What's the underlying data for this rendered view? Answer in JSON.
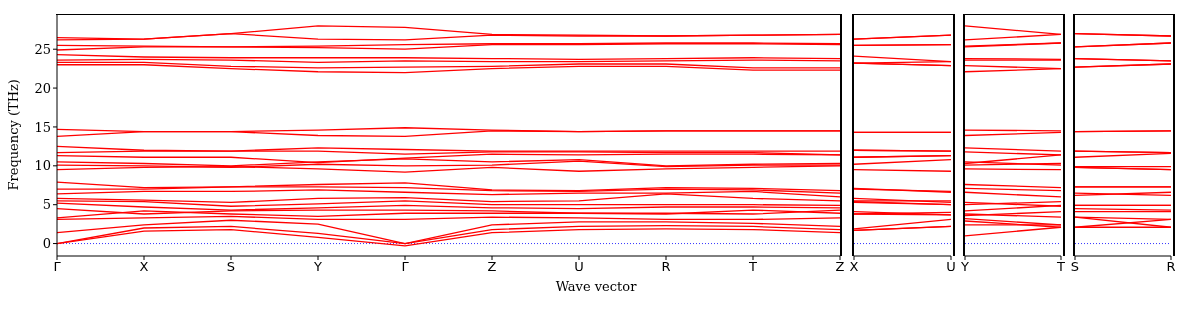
{
  "chart_data": [
    {
      "type": "line",
      "ylabel": "Frequency (THz)",
      "xlabel": "Wave vector",
      "color": "#ff0000",
      "categories": [
        "Γ",
        "X",
        "S",
        "Y",
        "Γ",
        "Z",
        "U",
        "R",
        "T",
        "Z"
      ],
      "ylim": [
        -1.6,
        29.4
      ],
      "yticks": [
        0,
        5,
        10,
        15,
        20,
        25
      ],
      "ref_lines": [
        {
          "axis": "y",
          "value": 0,
          "color": "#0000ff",
          "line_style": "dotted"
        }
      ],
      "series": [
        {
          "values": [
            26.5,
            26.3,
            27.0,
            28.0,
            27.8,
            26.9,
            26.8,
            26.7,
            26.8,
            26.9
          ]
        },
        {
          "values": [
            26.2,
            26.3,
            27.0,
            26.3,
            26.2,
            26.8,
            26.7,
            26.7,
            26.8,
            26.9
          ]
        },
        {
          "values": [
            25.5,
            25.4,
            25.3,
            25.4,
            25.6,
            25.7,
            25.7,
            25.8,
            25.8,
            25.7
          ]
        },
        {
          "values": [
            24.9,
            25.3,
            25.3,
            25.2,
            25.0,
            25.6,
            25.6,
            25.7,
            25.7,
            25.6
          ]
        },
        {
          "values": [
            24.3,
            24.0,
            23.9,
            23.9,
            23.9,
            23.8,
            23.7,
            23.8,
            23.9,
            23.8
          ]
        },
        {
          "values": [
            23.6,
            23.7,
            23.6,
            23.3,
            23.5,
            23.4,
            23.4,
            23.5,
            23.6,
            23.5
          ]
        },
        {
          "values": [
            23.3,
            23.3,
            22.8,
            22.6,
            22.7,
            22.8,
            23.1,
            23.1,
            22.6,
            22.6
          ]
        },
        {
          "values": [
            23.0,
            23.0,
            22.5,
            22.1,
            22.0,
            22.5,
            22.8,
            22.8,
            22.3,
            22.3
          ]
        },
        {
          "values": [
            14.7,
            14.4,
            14.4,
            14.6,
            14.9,
            14.6,
            14.4,
            14.5,
            14.5,
            14.5
          ]
        },
        {
          "values": [
            13.8,
            14.4,
            14.4,
            13.9,
            13.8,
            14.5,
            14.4,
            14.5,
            14.5,
            14.5
          ]
        },
        {
          "values": [
            12.5,
            12.0,
            11.9,
            12.3,
            12.1,
            11.9,
            11.9,
            11.9,
            11.9,
            11.9
          ]
        },
        {
          "values": [
            11.7,
            11.9,
            11.9,
            11.9,
            11.5,
            11.8,
            11.8,
            11.7,
            11.7,
            11.4
          ]
        },
        {
          "values": [
            11.3,
            11.1,
            11.1,
            10.4,
            11.0,
            11.5,
            11.4,
            11.5,
            11.5,
            11.4
          ]
        },
        {
          "values": [
            10.5,
            10.3,
            10.0,
            10.5,
            10.9,
            10.5,
            10.8,
            10.0,
            10.2,
            10.3
          ]
        },
        {
          "values": [
            10.1,
            10.0,
            9.8,
            10.2,
            10.0,
            10.1,
            10.6,
            9.9,
            10.1,
            10.1
          ]
        },
        {
          "values": [
            9.5,
            9.8,
            9.9,
            9.6,
            9.2,
            9.8,
            9.3,
            9.6,
            9.8,
            10.0
          ]
        },
        {
          "values": [
            7.9,
            7.2,
            7.3,
            7.6,
            7.8,
            6.9,
            6.8,
            7.2,
            7.1,
            6.8
          ]
        },
        {
          "values": [
            7.0,
            7.0,
            7.3,
            7.3,
            7.2,
            6.8,
            6.7,
            7.0,
            6.9,
            6.5
          ]
        },
        {
          "values": [
            6.4,
            6.7,
            6.7,
            6.9,
            6.6,
            6.3,
            6.5,
            6.5,
            6.7,
            6.0
          ]
        },
        {
          "values": [
            5.8,
            5.6,
            5.3,
            5.8,
            5.9,
            5.4,
            5.5,
            6.4,
            5.8,
            5.5
          ]
        },
        {
          "values": [
            5.5,
            5.4,
            4.8,
            5.1,
            5.5,
            5.0,
            5.0,
            5.0,
            5.0,
            4.9
          ]
        },
        {
          "values": [
            5.2,
            4.7,
            4.3,
            4.6,
            4.9,
            4.6,
            4.5,
            4.7,
            4.7,
            4.6
          ]
        },
        {
          "values": [
            4.5,
            3.8,
            4.2,
            4.3,
            4.3,
            4.2,
            3.9,
            3.9,
            3.8,
            4.3
          ]
        },
        {
          "values": [
            3.3,
            4.2,
            3.8,
            3.5,
            3.9,
            3.9,
            3.9,
            3.8,
            4.3,
            3.9
          ]
        },
        {
          "values": [
            3.1,
            3.3,
            3.5,
            3.1,
            3.1,
            3.4,
            3.3,
            3.1,
            3.1,
            3.3
          ]
        },
        {
          "values": [
            1.4,
            2.4,
            3.0,
            2.5,
            0,
            2.4,
            2.8,
            2.8,
            2.6,
            2.2
          ]
        },
        {
          "values": [
            0,
            2.0,
            2.2,
            1.3,
            0,
            1.8,
            2.2,
            2.3,
            2.2,
            1.8
          ]
        },
        {
          "values": [
            0,
            1.6,
            1.8,
            0.8,
            -0.3,
            1.4,
            1.8,
            1.9,
            1.8,
            1.4
          ]
        }
      ]
    },
    {
      "type": "line",
      "color": "#ff0000",
      "tick_labels": "x",
      "categories": [
        "X",
        "U"
      ],
      "ylim": [
        -1.6,
        29.4
      ],
      "yticks": [
        0,
        5,
        10,
        15,
        20,
        25
      ],
      "ref_lines": [
        {
          "axis": "y",
          "value": 0,
          "color": "#0000ff",
          "line_style": "dotted"
        }
      ],
      "series": [
        {
          "values": [
            26.3,
            26.8
          ]
        },
        {
          "values": [
            26.3,
            26.8
          ]
        },
        {
          "values": [
            25.5,
            25.6
          ]
        },
        {
          "values": [
            25.5,
            25.6
          ]
        },
        {
          "values": [
            24.1,
            23.4
          ]
        },
        {
          "values": [
            23.2,
            23.4
          ]
        },
        {
          "values": [
            23.2,
            22.9
          ]
        },
        {
          "values": [
            23.2,
            22.9
          ]
        },
        {
          "values": [
            14.3,
            14.3
          ]
        },
        {
          "values": [
            14.3,
            14.3
          ]
        },
        {
          "values": [
            12.0,
            11.9
          ]
        },
        {
          "values": [
            12.0,
            11.9
          ]
        },
        {
          "values": [
            11.1,
            11.3
          ]
        },
        {
          "values": [
            11.1,
            11.3
          ]
        },
        {
          "values": [
            10.2,
            10.8
          ]
        },
        {
          "values": [
            9.5,
            9.3
          ]
        },
        {
          "values": [
            7.1,
            6.6
          ]
        },
        {
          "values": [
            7.0,
            6.7
          ]
        },
        {
          "values": [
            5.8,
            5.3
          ]
        },
        {
          "values": [
            5.5,
            5.5
          ]
        },
        {
          "values": [
            5.4,
            5.0
          ]
        },
        {
          "values": [
            5.3,
            5.0
          ]
        },
        {
          "values": [
            4.1,
            3.7
          ]
        },
        {
          "values": [
            3.8,
            4.0
          ]
        },
        {
          "values": [
            3.8,
            3.7
          ]
        },
        {
          "values": [
            1.9,
            3.1
          ]
        },
        {
          "values": [
            1.7,
            2.2
          ]
        },
        {
          "values": [
            1.7,
            2.2
          ]
        }
      ]
    },
    {
      "type": "line",
      "color": "#ff0000",
      "tick_labels": "x",
      "categories": [
        "Y",
        "T"
      ],
      "ylim": [
        -1.6,
        29.4
      ],
      "yticks": [
        0,
        5,
        10,
        15,
        20,
        25
      ],
      "ref_lines": [
        {
          "axis": "y",
          "value": 0,
          "color": "#0000ff",
          "line_style": "dotted"
        }
      ],
      "series": [
        {
          "values": [
            28.0,
            26.9
          ]
        },
        {
          "values": [
            26.2,
            26.9
          ]
        },
        {
          "values": [
            25.4,
            25.8
          ]
        },
        {
          "values": [
            25.3,
            25.8
          ]
        },
        {
          "values": [
            23.8,
            23.7
          ]
        },
        {
          "values": [
            23.6,
            23.6
          ]
        },
        {
          "values": [
            22.9,
            22.5
          ]
        },
        {
          "values": [
            22.1,
            22.5
          ]
        },
        {
          "values": [
            14.6,
            14.5
          ]
        },
        {
          "values": [
            13.9,
            14.3
          ]
        },
        {
          "values": [
            12.3,
            11.9
          ]
        },
        {
          "values": [
            11.8,
            11.4
          ]
        },
        {
          "values": [
            10.5,
            10.1
          ]
        },
        {
          "values": [
            10.3,
            11.4
          ]
        },
        {
          "values": [
            9.6,
            9.5
          ]
        },
        {
          "values": [
            10.1,
            10.3
          ]
        },
        {
          "values": [
            7.6,
            7.2
          ]
        },
        {
          "values": [
            7.1,
            6.8
          ]
        },
        {
          "values": [
            6.6,
            6.0
          ]
        },
        {
          "values": [
            5.3,
            4.8
          ]
        },
        {
          "values": [
            5.0,
            5.4
          ]
        },
        {
          "values": [
            4.2,
            4.9
          ]
        },
        {
          "values": [
            3.8,
            3.4
          ]
        },
        {
          "values": [
            3.6,
            4.1
          ]
        },
        {
          "values": [
            3.2,
            2.4
          ]
        },
        {
          "values": [
            2.4,
            2.4
          ]
        },
        {
          "values": [
            2.9,
            2.1
          ]
        },
        {
          "values": [
            1.0,
            2.1
          ]
        }
      ]
    },
    {
      "type": "line",
      "color": "#ff0000",
      "tick_labels": "x",
      "categories": [
        "S",
        "R"
      ],
      "ylim": [
        -1.6,
        29.4
      ],
      "yticks": [
        0,
        5,
        10,
        15,
        20,
        25
      ],
      "ref_lines": [
        {
          "axis": "y",
          "value": 0,
          "color": "#0000ff",
          "line_style": "dotted"
        }
      ],
      "series": [
        {
          "values": [
            27.0,
            26.7
          ]
        },
        {
          "values": [
            27.0,
            26.7
          ]
        },
        {
          "values": [
            25.3,
            25.8
          ]
        },
        {
          "values": [
            25.3,
            25.8
          ]
        },
        {
          "values": [
            23.8,
            23.5
          ]
        },
        {
          "values": [
            23.8,
            23.5
          ]
        },
        {
          "values": [
            22.7,
            23.1
          ]
        },
        {
          "values": [
            22.7,
            23.1
          ]
        },
        {
          "values": [
            14.4,
            14.5
          ]
        },
        {
          "values": [
            14.4,
            14.5
          ]
        },
        {
          "values": [
            11.9,
            11.7
          ]
        },
        {
          "values": [
            11.9,
            11.7
          ]
        },
        {
          "values": [
            11.1,
            11.6
          ]
        },
        {
          "values": [
            9.9,
            9.9
          ]
        },
        {
          "values": [
            9.8,
            9.5
          ]
        },
        {
          "values": [
            9.8,
            9.5
          ]
        },
        {
          "values": [
            7.3,
            7.3
          ]
        },
        {
          "values": [
            7.3,
            7.3
          ]
        },
        {
          "values": [
            6.5,
            6.2
          ]
        },
        {
          "values": [
            6.2,
            6.6
          ]
        },
        {
          "values": [
            4.9,
            4.9
          ]
        },
        {
          "values": [
            4.9,
            4.9
          ]
        },
        {
          "values": [
            4.5,
            4.3
          ]
        },
        {
          "values": [
            4.1,
            4.1
          ]
        },
        {
          "values": [
            3.4,
            2.1
          ]
        },
        {
          "values": [
            2.1,
            3.1
          ]
        },
        {
          "values": [
            3.4,
            3.1
          ]
        },
        {
          "values": [
            2.1,
            2.1
          ]
        }
      ]
    }
  ]
}
